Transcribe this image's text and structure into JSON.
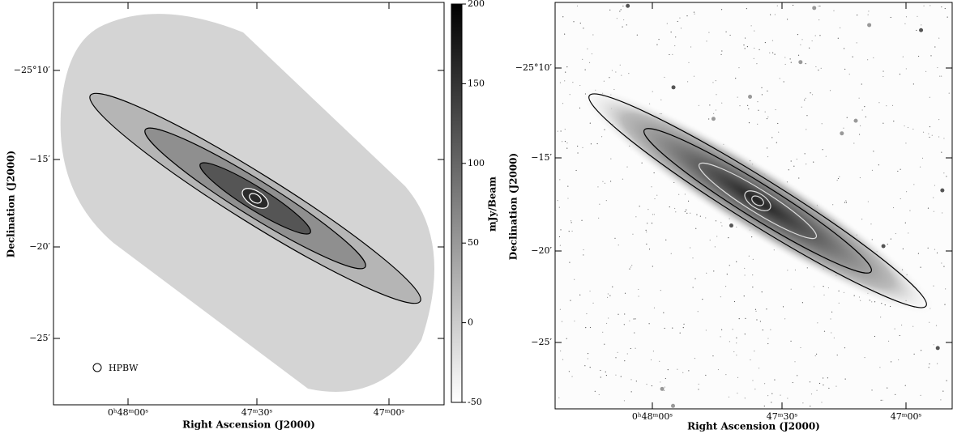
{
  "left_panel": {
    "y_ticks": [
      "−25°10′",
      "−15′",
      "−20′",
      "−25′"
    ],
    "x_ticks": [
      "0ʰ48ᵐ00ˢ",
      "47ᵐ30ˢ",
      "47ᵐ00ˢ"
    ],
    "x_label": "Right Ascension (J2000)",
    "y_label": "Declination (J2000)",
    "beam_label": "HPBW"
  },
  "colorbar": {
    "label": "mJy/Beam",
    "range": [
      -50,
      200
    ],
    "ticks": [
      200,
      150,
      100,
      50,
      0,
      -50
    ]
  },
  "right_panel": {
    "y_ticks": [
      "−25°10′",
      "−15′",
      "−20′",
      "−25′"
    ],
    "x_ticks": [
      "0ʰ48ᵐ00ˢ",
      "47ᵐ30ˢ",
      "47ᵐ00ˢ"
    ],
    "x_label": "Right Ascension (J2000)",
    "y_label": "Declination (J2000)"
  }
}
